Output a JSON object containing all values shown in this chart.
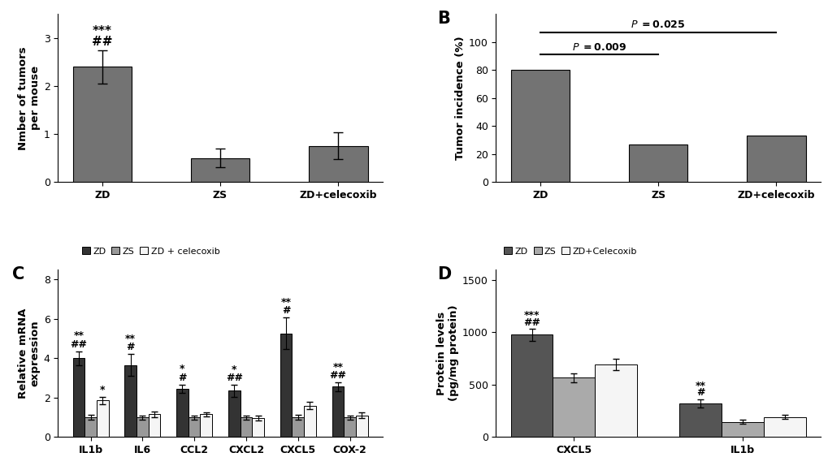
{
  "panel_A": {
    "categories": [
      "ZD",
      "ZS",
      "ZD+celecoxib"
    ],
    "values": [
      2.4,
      0.5,
      0.75
    ],
    "errors": [
      0.35,
      0.2,
      0.28
    ],
    "ylabel": "Nmber of tumors\nper mouse",
    "ylim": [
      0,
      3.5
    ],
    "yticks": [
      0,
      1,
      2,
      3
    ],
    "bar_color": "#737373"
  },
  "panel_B": {
    "categories": [
      "ZD",
      "ZS",
      "ZD+celecoxib"
    ],
    "values": [
      80,
      26.7,
      33.3
    ],
    "ylabel": "Tumor incidence (%)",
    "ylim": [
      0,
      120
    ],
    "yticks": [
      0,
      20,
      40,
      60,
      80,
      100
    ],
    "bar_color": "#737373"
  },
  "panel_C": {
    "categories": [
      "IL1b",
      "IL6",
      "CCL2",
      "CXCL2",
      "CXCL5",
      "COX-2"
    ],
    "zd_values": [
      4.0,
      3.65,
      2.45,
      2.35,
      5.25,
      2.55
    ],
    "zs_values": [
      1.0,
      1.0,
      1.0,
      1.0,
      1.0,
      1.0
    ],
    "celecoxib_values": [
      1.85,
      1.15,
      1.15,
      0.95,
      1.6,
      1.1
    ],
    "zd_errors": [
      0.35,
      0.55,
      0.22,
      0.3,
      0.8,
      0.22
    ],
    "zs_errors": [
      0.12,
      0.1,
      0.1,
      0.1,
      0.12,
      0.1
    ],
    "celecoxib_errors": [
      0.2,
      0.15,
      0.12,
      0.12,
      0.18,
      0.15
    ],
    "ylabel": "Relative mRNA\nexpression",
    "ylim": [
      0,
      8.5
    ],
    "yticks": [
      0,
      2,
      4,
      6,
      8
    ],
    "color_zd": "#333333",
    "color_zs": "#999999",
    "color_cel": "#f5f5f5",
    "legend_labels": [
      "ZD",
      "ZS",
      "ZD + celecoxib"
    ],
    "zd_sig_hash": [
      "##",
      "#",
      "#",
      "##",
      "#",
      "##"
    ],
    "zd_sig_star": [
      "**",
      "**",
      "*",
      "*",
      "**",
      "**"
    ],
    "cel_sig": [
      "*",
      "",
      "",
      "",
      "",
      ""
    ]
  },
  "panel_D": {
    "categories": [
      "CXCL5",
      "IL1b"
    ],
    "zd_values": [
      975,
      320
    ],
    "zs_values": [
      565,
      145
    ],
    "celecoxib_values": [
      690,
      190
    ],
    "zd_errors": [
      55,
      40
    ],
    "zs_errors": [
      40,
      20
    ],
    "celecoxib_errors": [
      55,
      20
    ],
    "ylabel": "Protein levels\n(pg/mg protein)",
    "ylim": [
      0,
      1600
    ],
    "yticks": [
      0,
      500,
      1000,
      1500
    ],
    "color_zd": "#555555",
    "color_zs": "#aaaaaa",
    "color_cel": "#f5f5f5",
    "legend_labels": [
      "ZD",
      "ZS",
      "ZD+Celecoxib"
    ],
    "zd_sig_hash": [
      "##",
      "#"
    ],
    "zd_sig_star": [
      "***",
      "**"
    ]
  }
}
